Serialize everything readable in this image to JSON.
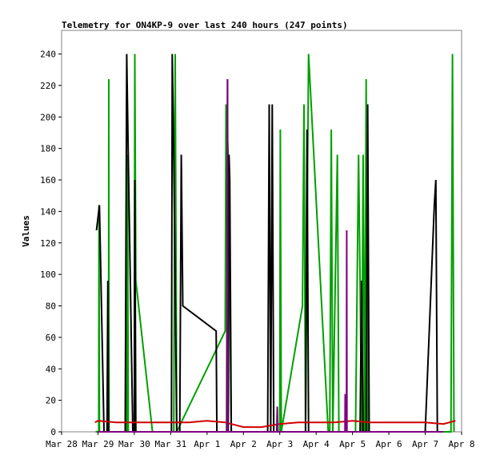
{
  "chart_data": {
    "type": "line",
    "title": "Telemetry for ON4KP-9 over last 240 hours (247 points)",
    "xlabel": "",
    "ylabel": "Values",
    "xlim": [
      "2024-03-28T00:00",
      "2024-04-08T00:00"
    ],
    "ylim": [
      0,
      255
    ],
    "y_ticks": [
      0,
      20,
      40,
      60,
      80,
      100,
      120,
      140,
      160,
      180,
      200,
      220,
      240
    ],
    "x_ticks": [
      {
        "t": "2024-03-28T00:00",
        "label": "Mar 28"
      },
      {
        "t": "2024-03-29T00:00",
        "label": "Mar 29"
      },
      {
        "t": "2024-03-30T00:00",
        "label": "Mar 30"
      },
      {
        "t": "2024-03-31T00:00",
        "label": "Mar 31"
      },
      {
        "t": "2024-04-01T00:00",
        "label": "Apr 1"
      },
      {
        "t": "2024-04-02T00:00",
        "label": "Apr 2"
      },
      {
        "t": "2024-04-03T00:00",
        "label": "Apr 3"
      },
      {
        "t": "2024-04-04T00:00",
        "label": "Apr 4"
      },
      {
        "t": "2024-04-05T00:00",
        "label": "Apr 5"
      },
      {
        "t": "2024-04-06T00:00",
        "label": "Apr 6"
      },
      {
        "t": "2024-04-07T00:00",
        "label": "Apr 7"
      },
      {
        "t": "2024-04-08T00:00",
        "label": "Apr 8"
      }
    ],
    "grid": false,
    "legend": "none",
    "series": [
      {
        "color": "#00a000",
        "points": [
          [
            "2024-03-28T22:30",
            0
          ],
          [
            "2024-03-29T00:30",
            0
          ],
          [
            "2024-03-29T00:40",
            144
          ],
          [
            "2024-03-29T01:00",
            0
          ],
          [
            "2024-03-29T07:00",
            0
          ],
          [
            "2024-03-29T07:10",
            224
          ],
          [
            "2024-03-29T07:20",
            0
          ],
          [
            "2024-03-29T19:00",
            0
          ],
          [
            "2024-03-29T19:30",
            176
          ],
          [
            "2024-03-29T20:00",
            0
          ],
          [
            "2024-03-30T00:00",
            0
          ],
          [
            "2024-03-30T00:20",
            240
          ],
          [
            "2024-03-30T01:00",
            96
          ],
          [
            "2024-03-30T12:00",
            0
          ],
          [
            "2024-03-31T00:00",
            0
          ],
          [
            "2024-03-31T02:00",
            0
          ],
          [
            "2024-03-31T03:00",
            240
          ],
          [
            "2024-03-31T04:00",
            0
          ],
          [
            "2024-04-01T12:00",
            64
          ],
          [
            "2024-04-01T12:30",
            208
          ],
          [
            "2024-04-01T14:00",
            176
          ],
          [
            "2024-04-01T16:00",
            0
          ],
          [
            "2024-04-01T20:00",
            0
          ],
          [
            "2024-04-01T22:00",
            0
          ],
          [
            "2024-04-02T22:00",
            0
          ],
          [
            "2024-04-03T00:00",
            0
          ],
          [
            "2024-04-03T00:20",
            192
          ],
          [
            "2024-04-03T01:00",
            0
          ],
          [
            "2024-04-03T15:00",
            80
          ],
          [
            "2024-04-03T16:00",
            208
          ],
          [
            "2024-04-03T17:00",
            0
          ],
          [
            "2024-04-03T19:00",
            240
          ],
          [
            "2024-04-04T08:00",
            0
          ],
          [
            "2024-04-04T09:00",
            0
          ],
          [
            "2024-04-04T10:00",
            192
          ],
          [
            "2024-04-04T11:00",
            0
          ],
          [
            "2024-04-04T14:00",
            176
          ],
          [
            "2024-04-04T15:00",
            0
          ],
          [
            "2024-04-05T02:00",
            0
          ],
          [
            "2024-04-05T04:00",
            176
          ],
          [
            "2024-04-05T05:00",
            96
          ],
          [
            "2024-04-05T06:00",
            0
          ],
          [
            "2024-04-05T07:00",
            176
          ],
          [
            "2024-04-05T08:00",
            0
          ],
          [
            "2024-04-05T09:00",
            224
          ],
          [
            "2024-04-05T10:00",
            0
          ],
          [
            "2024-04-07T17:00",
            0
          ],
          [
            "2024-04-07T18:00",
            240
          ],
          [
            "2024-04-07T19:00",
            0
          ]
        ]
      },
      {
        "color": "#000000",
        "points": [
          [
            "2024-03-28T23:00",
            128
          ],
          [
            "2024-03-29T01:00",
            144
          ],
          [
            "2024-03-29T04:00",
            0
          ],
          [
            "2024-03-29T06:00",
            0
          ],
          [
            "2024-03-29T06:30",
            96
          ],
          [
            "2024-03-29T07:00",
            0
          ],
          [
            "2024-03-29T18:00",
            0
          ],
          [
            "2024-03-29T19:00",
            240
          ],
          [
            "2024-03-29T20:00",
            176
          ],
          [
            "2024-03-29T23:00",
            0
          ],
          [
            "2024-03-30T00:00",
            0
          ],
          [
            "2024-03-30T00:20",
            160
          ],
          [
            "2024-03-30T01:00",
            0
          ],
          [
            "2024-03-31T00:30",
            0
          ],
          [
            "2024-03-31T01:00",
            240
          ],
          [
            "2024-03-31T02:00",
            176
          ],
          [
            "2024-03-31T04:00",
            0
          ],
          [
            "2024-03-31T06:00",
            0
          ],
          [
            "2024-03-31T07:00",
            176
          ],
          [
            "2024-03-31T08:00",
            80
          ],
          [
            "2024-04-01T06:00",
            64
          ],
          [
            "2024-04-01T06:30",
            0
          ],
          [
            "2024-04-01T13:00",
            0
          ],
          [
            "2024-04-01T13:30",
            224
          ],
          [
            "2024-04-01T14:00",
            0
          ],
          [
            "2024-04-01T14:30",
            176
          ],
          [
            "2024-04-01T15:00",
            160
          ],
          [
            "2024-04-01T16:00",
            0
          ],
          [
            "2024-04-02T16:00",
            0
          ],
          [
            "2024-04-02T17:00",
            208
          ],
          [
            "2024-04-02T18:00",
            0
          ],
          [
            "2024-04-02T19:00",
            208
          ],
          [
            "2024-04-02T20:00",
            0
          ],
          [
            "2024-04-03T17:00",
            0
          ],
          [
            "2024-04-03T18:00",
            192
          ],
          [
            "2024-04-03T19:00",
            0
          ],
          [
            "2024-04-05T05:00",
            0
          ],
          [
            "2024-04-05T06:00",
            96
          ],
          [
            "2024-04-05T07:00",
            0
          ],
          [
            "2024-04-05T09:00",
            0
          ],
          [
            "2024-04-05T10:00",
            208
          ],
          [
            "2024-04-05T11:00",
            0
          ],
          [
            "2024-04-06T22:00",
            0
          ],
          [
            "2024-04-07T00:00",
            0
          ],
          [
            "2024-04-07T06:00",
            144
          ],
          [
            "2024-04-07T07:00",
            160
          ],
          [
            "2024-04-07T08:00",
            0
          ]
        ]
      },
      {
        "color": "#d00000",
        "points": [
          [
            "2024-03-28T22:00",
            6
          ],
          [
            "2024-03-29T00:00",
            7
          ],
          [
            "2024-03-29T12:00",
            6
          ],
          [
            "2024-03-30T12:00",
            6
          ],
          [
            "2024-03-31T00:00",
            6
          ],
          [
            "2024-03-31T12:00",
            6
          ],
          [
            "2024-04-01T00:00",
            7
          ],
          [
            "2024-04-01T12:00",
            6
          ],
          [
            "2024-04-02T00:00",
            3
          ],
          [
            "2024-04-02T12:00",
            3
          ],
          [
            "2024-04-03T00:00",
            5
          ],
          [
            "2024-04-03T12:00",
            6
          ],
          [
            "2024-04-04T00:00",
            6
          ],
          [
            "2024-04-04T12:00",
            6
          ],
          [
            "2024-04-05T00:00",
            7
          ],
          [
            "2024-04-05T12:00",
            6
          ],
          [
            "2024-04-06T00:00",
            6
          ],
          [
            "2024-04-06T12:00",
            6
          ],
          [
            "2024-04-07T00:00",
            6
          ],
          [
            "2024-04-07T12:00",
            5
          ],
          [
            "2024-04-07T20:00",
            7
          ]
        ]
      },
      {
        "color": "#800080",
        "points": [
          [
            "2024-03-29T00:00",
            0
          ],
          [
            "2024-04-01T13:20",
            0
          ],
          [
            "2024-04-01T13:30",
            224
          ],
          [
            "2024-04-01T13:40",
            0
          ],
          [
            "2024-04-02T22:00",
            0
          ],
          [
            "2024-04-02T22:20",
            16
          ],
          [
            "2024-04-02T22:40",
            0
          ],
          [
            "2024-04-04T19:00",
            0
          ],
          [
            "2024-04-04T19:10",
            24
          ],
          [
            "2024-04-04T19:20",
            0
          ],
          [
            "2024-04-04T20:00",
            0
          ],
          [
            "2024-04-04T20:10",
            128
          ],
          [
            "2024-04-04T20:20",
            0
          ],
          [
            "2024-04-07T12:00",
            0
          ]
        ]
      }
    ]
  }
}
